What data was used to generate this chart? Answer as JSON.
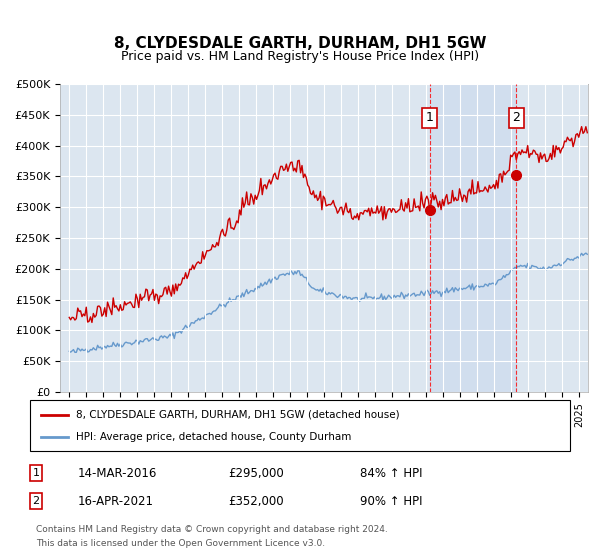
{
  "title": "8, CLYDESDALE GARTH, DURHAM, DH1 5GW",
  "subtitle": "Price paid vs. HM Land Registry's House Price Index (HPI)",
  "legend_line1": "8, CLYDESDALE GARTH, DURHAM, DH1 5GW (detached house)",
  "legend_line2": "HPI: Average price, detached house, County Durham",
  "footer1": "Contains HM Land Registry data © Crown copyright and database right 2024.",
  "footer2": "This data is licensed under the Open Government Licence v3.0.",
  "annotation1": {
    "label": "1",
    "date": "14-MAR-2016",
    "price": "£295,000",
    "pct": "84% ↑ HPI"
  },
  "annotation2": {
    "label": "2",
    "date": "16-APR-2021",
    "price": "£352,000",
    "pct": "90% ↑ HPI"
  },
  "vline1_x": 2016.2,
  "vline2_x": 2021.3,
  "dot1_x": 2016.2,
  "dot1_y": 295000,
  "dot2_x": 2021.3,
  "dot2_y": 352000,
  "red_color": "#cc0000",
  "blue_color": "#6699cc",
  "bg_color": "#dce6f0",
  "plot_bg": "#ffffff",
  "ylim": [
    0,
    500000
  ],
  "xlim": [
    1994.5,
    2025.5
  ]
}
